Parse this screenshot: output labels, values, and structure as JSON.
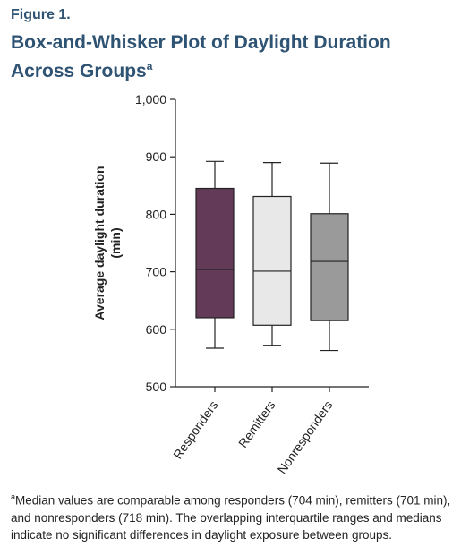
{
  "figure": {
    "label": "Figure 1.",
    "title": "Box-and-Whisker Plot of Daylight Duration Across Groups",
    "title_footnote_marker": "a"
  },
  "footnote": {
    "marker": "a",
    "text": "Median values are comparable among responders (704 min), remitters (701 min), and nonresponders (718 min). The overlapping interquartile ranges and medians indicate no significant differences in daylight exposure between groups."
  },
  "colors": {
    "title": "#2f5373",
    "responders": "#633a57",
    "remitters": "#e8e8e8",
    "nonresponders": "#9a9a9a"
  },
  "chart_data": {
    "type": "box",
    "ylabel": "Average daylight duration (min)",
    "ylabel_lines": [
      "Average daylight duration",
      "(min)"
    ],
    "ylim": [
      500,
      1000
    ],
    "yticks": [
      500,
      600,
      700,
      800,
      900,
      1000
    ],
    "ytick_labels": [
      "500",
      "600",
      "700",
      "800",
      "900",
      "1,000"
    ],
    "grid": false,
    "categories": [
      "Responders",
      "Remitters",
      "Nonresponders"
    ],
    "boxes": [
      {
        "name": "Responders",
        "min": 567,
        "q1": 620,
        "median": 704,
        "q3": 845,
        "max": 892,
        "color": "#633a57"
      },
      {
        "name": "Remitters",
        "min": 572,
        "q1": 607,
        "median": 701,
        "q3": 831,
        "max": 890,
        "color": "#e8e8e8"
      },
      {
        "name": "Nonresponders",
        "min": 563,
        "q1": 615,
        "median": 718,
        "q3": 801,
        "max": 889,
        "color": "#9a9a9a"
      }
    ]
  }
}
